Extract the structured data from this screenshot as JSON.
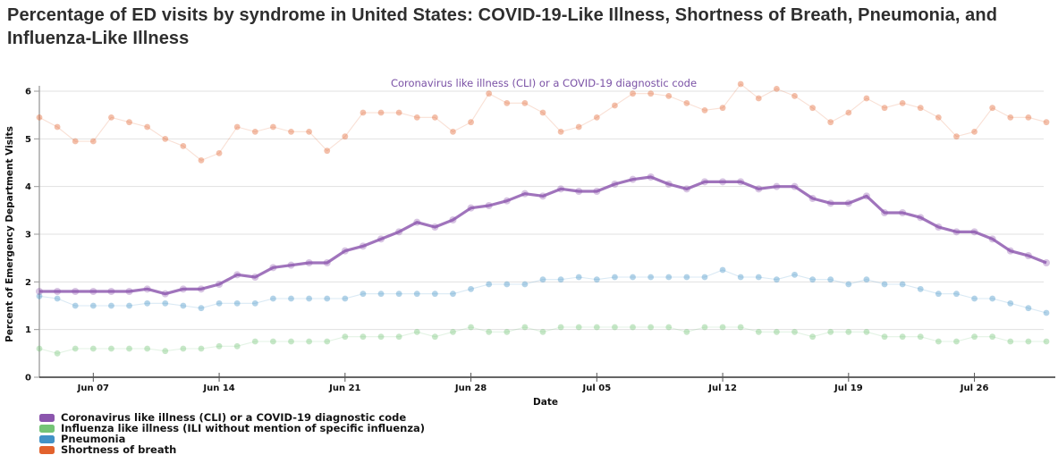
{
  "title": "Percentage of ED visits by syndrome in United States: COVID-19-Like Illness, Shortness of Breath, Pneumonia, and Influenza-Like Illness",
  "chart_data": {
    "type": "line",
    "title": "Percentage of ED visits by syndrome in United States: COVID-19-Like Illness, Shortness of Breath, Pneumonia, and Influenza-Like Illness",
    "annotation": "Coronavirus like illness (CLI) or a COVID-19 diagnostic code",
    "annotation_color": "#7a51a5",
    "xlabel": "Date",
    "ylabel": "Percent of Emergency Department Visits",
    "ylim": [
      0,
      6
    ],
    "yticks": [
      0,
      1,
      2,
      3,
      4,
      5,
      6
    ],
    "grid": "horizontal",
    "legend_position": "bottom-left",
    "xtick_labels": [
      "Jun 07",
      "Jun 14",
      "Jun 21",
      "Jun 28",
      "Jul 05",
      "Jul 12",
      "Jul 19",
      "Jul 26"
    ],
    "xtick_indices": [
      3,
      10,
      17,
      24,
      31,
      38,
      45,
      52
    ],
    "x_dates": [
      "Jun 04",
      "Jun 05",
      "Jun 06",
      "Jun 07",
      "Jun 08",
      "Jun 09",
      "Jun 10",
      "Jun 11",
      "Jun 12",
      "Jun 13",
      "Jun 14",
      "Jun 15",
      "Jun 16",
      "Jun 17",
      "Jun 18",
      "Jun 19",
      "Jun 20",
      "Jun 21",
      "Jun 22",
      "Jun 23",
      "Jun 24",
      "Jun 25",
      "Jun 26",
      "Jun 27",
      "Jun 28",
      "Jun 29",
      "Jun 30",
      "Jul 01",
      "Jul 02",
      "Jul 03",
      "Jul 04",
      "Jul 05",
      "Jul 06",
      "Jul 07",
      "Jul 08",
      "Jul 09",
      "Jul 10",
      "Jul 11",
      "Jul 12",
      "Jul 13",
      "Jul 14",
      "Jul 15",
      "Jul 16",
      "Jul 17",
      "Jul 18",
      "Jul 19",
      "Jul 20",
      "Jul 21",
      "Jul 22",
      "Jul 23",
      "Jul 24",
      "Jul 25",
      "Jul 26",
      "Jul 27",
      "Jul 28",
      "Jul 29",
      "Jul 30"
    ],
    "series": [
      {
        "name": "Coronavirus like illness (CLI) or a COVID-19 diagnostic code",
        "color": "#8b55ad",
        "line_style": "solid",
        "values": [
          1.8,
          1.8,
          1.8,
          1.8,
          1.8,
          1.8,
          1.85,
          1.75,
          1.85,
          1.85,
          1.95,
          2.15,
          2.1,
          2.3,
          2.35,
          2.4,
          2.4,
          2.65,
          2.75,
          2.9,
          3.05,
          3.25,
          3.15,
          3.3,
          3.55,
          3.6,
          3.7,
          3.85,
          3.8,
          3.95,
          3.9,
          3.9,
          4.05,
          4.15,
          4.2,
          4.05,
          3.95,
          4.1,
          4.1,
          4.1,
          3.95,
          4.0,
          4.0,
          3.75,
          3.65,
          3.65,
          3.8,
          3.45,
          3.45,
          3.35,
          3.15,
          3.05,
          3.05,
          2.9,
          2.65,
          2.55,
          2.4
        ]
      },
      {
        "name": "Influenza like illness (ILI without mention of specific influenza)",
        "color": "#74c476",
        "line_style": "dotted",
        "values": [
          0.6,
          0.5,
          0.6,
          0.6,
          0.6,
          0.6,
          0.6,
          0.55,
          0.6,
          0.6,
          0.65,
          0.65,
          0.75,
          0.75,
          0.75,
          0.75,
          0.75,
          0.85,
          0.85,
          0.85,
          0.85,
          0.95,
          0.85,
          0.95,
          1.05,
          0.95,
          0.95,
          1.05,
          0.95,
          1.05,
          1.05,
          1.05,
          1.05,
          1.05,
          1.05,
          1.05,
          0.95,
          1.05,
          1.05,
          1.05,
          0.95,
          0.95,
          0.95,
          0.85,
          0.95,
          0.95,
          0.95,
          0.85,
          0.85,
          0.85,
          0.75,
          0.75,
          0.85,
          0.85,
          0.75,
          0.75,
          0.75
        ]
      },
      {
        "name": "Pneumonia",
        "color": "#4292c6",
        "line_style": "dotted",
        "values": [
          1.7,
          1.65,
          1.5,
          1.5,
          1.5,
          1.5,
          1.55,
          1.55,
          1.5,
          1.45,
          1.55,
          1.55,
          1.55,
          1.65,
          1.65,
          1.65,
          1.65,
          1.65,
          1.75,
          1.75,
          1.75,
          1.75,
          1.75,
          1.75,
          1.85,
          1.95,
          1.95,
          1.95,
          2.05,
          2.05,
          2.1,
          2.05,
          2.1,
          2.1,
          2.1,
          2.1,
          2.1,
          2.1,
          2.25,
          2.1,
          2.1,
          2.05,
          2.15,
          2.05,
          2.05,
          1.95,
          2.05,
          1.95,
          1.95,
          1.85,
          1.75,
          1.75,
          1.65,
          1.65,
          1.55,
          1.45,
          1.35
        ]
      },
      {
        "name": "Shortness of breath",
        "color": "#e2622d",
        "line_style": "dotted",
        "values": [
          5.45,
          5.25,
          4.95,
          4.95,
          5.45,
          5.35,
          5.25,
          5.0,
          4.85,
          4.55,
          4.7,
          5.25,
          5.15,
          5.25,
          5.15,
          5.15,
          4.75,
          5.05,
          5.55,
          5.55,
          5.55,
          5.45,
          5.45,
          5.15,
          5.35,
          5.95,
          5.75,
          5.75,
          5.55,
          5.15,
          5.25,
          5.45,
          5.7,
          5.95,
          5.95,
          5.9,
          5.75,
          5.6,
          5.65,
          6.15,
          5.85,
          6.05,
          5.9,
          5.65,
          5.35,
          5.55,
          5.85,
          5.65,
          5.75,
          5.65,
          5.45,
          5.05,
          5.15,
          5.65,
          5.45,
          5.45,
          5.35
        ]
      }
    ]
  }
}
